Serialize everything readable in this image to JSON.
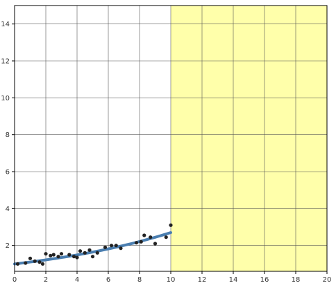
{
  "chart_data": {
    "type": "scatter",
    "title": "",
    "xlabel": "",
    "ylabel": "",
    "xlim": [
      0,
      20
    ],
    "ylim": [
      0.6,
      15.0
    ],
    "grid": true,
    "x_ticks": [
      0,
      2,
      4,
      6,
      8,
      10,
      12,
      14,
      16,
      18,
      20
    ],
    "y_ticks": [
      2,
      4,
      6,
      8,
      10,
      12,
      14
    ],
    "highlight_region": {
      "x_from": 10,
      "x_to": 20,
      "color": "#ffffaa"
    },
    "series": [
      {
        "kind": "points",
        "color": "#222222",
        "points": [
          [
            0.2,
            1.0
          ],
          [
            0.7,
            1.05
          ],
          [
            1.0,
            1.3
          ],
          [
            1.3,
            1.15
          ],
          [
            1.6,
            1.1
          ],
          [
            1.8,
            1.0
          ],
          [
            2.0,
            1.55
          ],
          [
            2.3,
            1.45
          ],
          [
            2.5,
            1.5
          ],
          [
            2.8,
            1.4
          ],
          [
            3.0,
            1.55
          ],
          [
            3.5,
            1.5
          ],
          [
            3.8,
            1.4
          ],
          [
            4.0,
            1.35
          ],
          [
            4.2,
            1.7
          ],
          [
            4.5,
            1.6
          ],
          [
            4.8,
            1.75
          ],
          [
            5.0,
            1.4
          ],
          [
            5.3,
            1.6
          ],
          [
            5.8,
            1.9
          ],
          [
            6.2,
            2.0
          ],
          [
            6.5,
            2.0
          ],
          [
            6.8,
            1.85
          ],
          [
            7.8,
            2.15
          ],
          [
            8.1,
            2.2
          ],
          [
            8.3,
            2.55
          ],
          [
            8.7,
            2.45
          ],
          [
            9.0,
            2.1
          ],
          [
            9.7,
            2.45
          ],
          [
            10.0,
            3.1
          ]
        ]
      },
      {
        "kind": "fit",
        "color": "#4a7eb0",
        "x_from": 0,
        "x_to": 10,
        "y_start": 1.0,
        "y_end": 2.7
      }
    ]
  }
}
